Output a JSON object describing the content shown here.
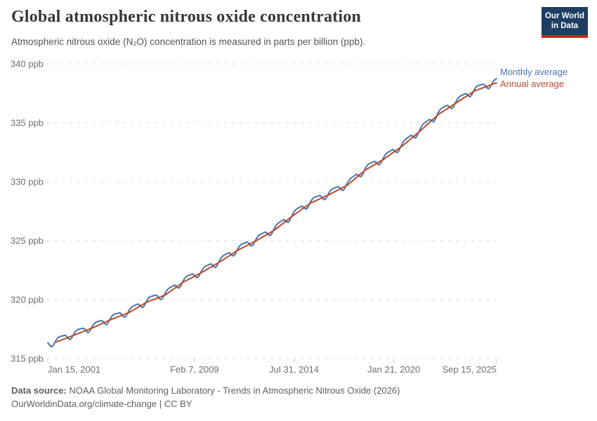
{
  "branding": {
    "logo_line1": "Our World",
    "logo_line2": "in Data",
    "bg_color": "#1d3d63",
    "accent_color": "#cf2018"
  },
  "footer": {
    "datasource_label": "Data source:",
    "datasource_text": "NOAA Global Monitoring Laboratory - Trends in Atmospheric Nitrous Oxide (2026)",
    "license_text": "OurWorldinData.org/climate-change | CC BY"
  },
  "theme": {
    "grid_color": "#dadada",
    "tick_color": "#c4c4c4",
    "axis_text_color": "#6e6e6e",
    "title_color": "#383838",
    "subtitle_color": "#555555",
    "footer_color": "#5f5f5f",
    "background": "#ffffff"
  },
  "chart_data": {
    "type": "line",
    "title": "Global atmospheric nitrous oxide concentration",
    "subtitle": "Atmospheric nitrous oxide (N₂O) concentration is measured in parts per billion (ppb).",
    "unit": "ppb",
    "grid": true,
    "legend_position": "right-of-plot",
    "xlim": [
      2001.038,
      2025.707
    ],
    "ylim": [
      315,
      340
    ],
    "x_ticks": [
      {
        "t": 2001.038,
        "label": "Jan 15, 2001",
        "align": "start"
      },
      {
        "t": 2009.104,
        "label": "Feb 7, 2009",
        "align": "middle"
      },
      {
        "t": 2014.578,
        "label": "Jul 31, 2014",
        "align": "middle"
      },
      {
        "t": 2020.055,
        "label": "Jan 21, 2020",
        "align": "middle"
      },
      {
        "t": 2025.707,
        "label": "Sep 15, 2025",
        "align": "end"
      }
    ],
    "y_ticks": [
      {
        "v": 315,
        "label": "315 ppb"
      },
      {
        "v": 320,
        "label": "320 ppb"
      },
      {
        "v": 325,
        "label": "325 ppb"
      },
      {
        "v": 330,
        "label": "330 ppb"
      },
      {
        "v": 335,
        "label": "335 ppb"
      },
      {
        "v": 340,
        "label": "340 ppb"
      }
    ],
    "series": [
      {
        "id": "monthly",
        "name": "Monthly average",
        "color": "#4c76ac",
        "derivation": "annual_trend_plus_seasonal_cycle",
        "range_ppb": [
          316.1,
          338.9
        ],
        "seasonal_cycle_ppb": [
          0.28,
          0.12,
          -0.1,
          -0.25,
          -0.2,
          -0.02,
          0.16,
          0.28,
          0.34,
          0.34,
          0.32,
          0.3
        ]
      },
      {
        "id": "annual",
        "name": "Annual average",
        "color": "#bb4a2c",
        "x": [
          2001.5,
          2002.5,
          2003.5,
          2004.5,
          2005.5,
          2006.5,
          2007.5,
          2008.5,
          2009.5,
          2010.5,
          2011.5,
          2012.5,
          2013.5,
          2014.5,
          2015.5,
          2016.5,
          2017.5,
          2018.5,
          2019.5,
          2020.5,
          2021.5,
          2022.5,
          2023.5,
          2024.5,
          2025.707
        ],
        "values": [
          316.4,
          317.0,
          317.6,
          318.3,
          318.9,
          319.8,
          320.4,
          321.5,
          322.3,
          323.2,
          324.2,
          325.0,
          325.9,
          327.1,
          328.2,
          328.9,
          329.7,
          331.0,
          331.9,
          333.0,
          334.3,
          335.7,
          336.7,
          337.7,
          338.4
        ]
      }
    ]
  }
}
